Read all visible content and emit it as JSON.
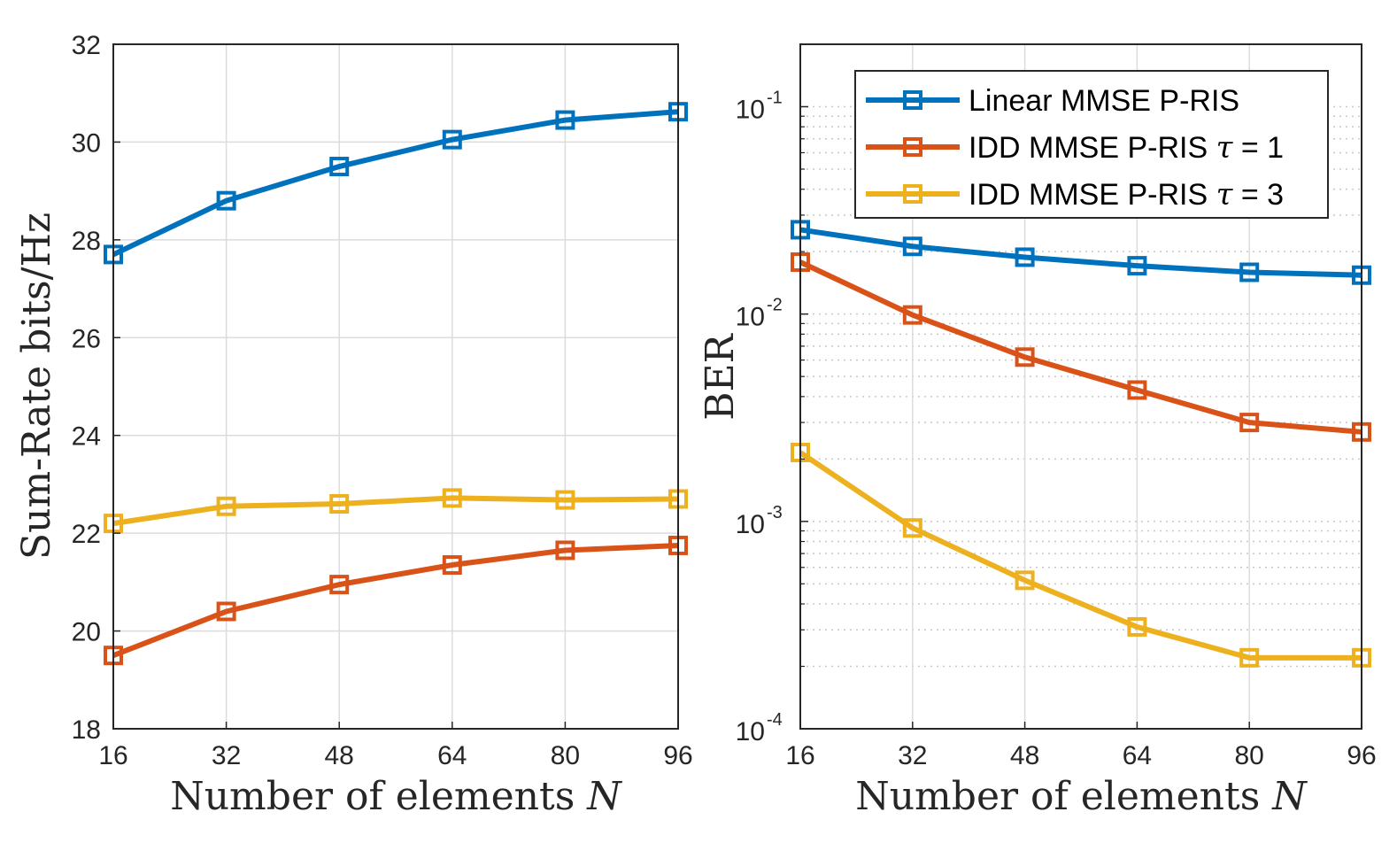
{
  "chart_data": [
    {
      "type": "line",
      "xlabel": "Number of elements N",
      "ylabel": "Sum-Rate bits/Hz",
      "x": [
        16,
        32,
        48,
        64,
        80,
        96
      ],
      "xticks": [
        "16",
        "32",
        "48",
        "64",
        "80",
        "96"
      ],
      "ylim": [
        18,
        32
      ],
      "yticks": [
        "18",
        "20",
        "22",
        "24",
        "26",
        "28",
        "30",
        "32"
      ],
      "grid": true,
      "series": [
        {
          "name": "Linear MMSE P-RIS",
          "color": "#0072BD",
          "values": [
            27.7,
            28.8,
            29.5,
            30.05,
            30.45,
            30.62
          ]
        },
        {
          "name": "IDD MMSE P-RIS τ = 1",
          "color": "#D95319",
          "values": [
            19.5,
            20.4,
            20.95,
            21.35,
            21.65,
            21.75
          ]
        },
        {
          "name": "IDD MMSE P-RIS τ = 3",
          "color": "#EDB120",
          "values": [
            22.2,
            22.55,
            22.6,
            22.72,
            22.68,
            22.7
          ]
        }
      ]
    },
    {
      "type": "line",
      "xlabel": "Number of elements N",
      "ylabel": "BER",
      "x": [
        16,
        32,
        48,
        64,
        80,
        96
      ],
      "xticks": [
        "16",
        "32",
        "48",
        "64",
        "80",
        "96"
      ],
      "yscale": "log",
      "ylim": [
        0.0001,
        0.2
      ],
      "yticks": [
        {
          "base": "10",
          "exp": "-4"
        },
        {
          "base": "10",
          "exp": "-3"
        },
        {
          "base": "10",
          "exp": "-2"
        },
        {
          "base": "10",
          "exp": "-1"
        }
      ],
      "grid": true,
      "legend_position": "top-right",
      "series": [
        {
          "name": "Linear MMSE P-RIS",
          "color": "#0072BD",
          "values": [
            0.0255,
            0.0212,
            0.0188,
            0.0171,
            0.0159,
            0.0154
          ]
        },
        {
          "name": "IDD MMSE P-RIS τ = 1",
          "color": "#D95319",
          "values": [
            0.0178,
            0.0099,
            0.0062,
            0.0043,
            0.003,
            0.0027
          ]
        },
        {
          "name": "IDD MMSE P-RIS τ = 3",
          "color": "#EDB120",
          "values": [
            0.00215,
            0.00093,
            0.00052,
            0.00031,
            0.00022,
            0.00022
          ]
        }
      ],
      "legend": [
        "Linear MMSE P-RIS",
        "IDD MMSE P-RIS τ = 1",
        "IDD MMSE P-RIS τ = 3"
      ]
    }
  ]
}
